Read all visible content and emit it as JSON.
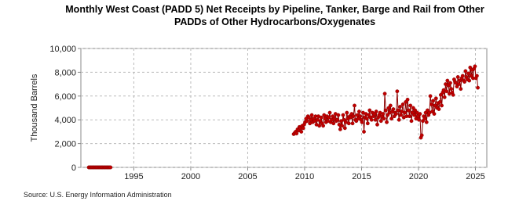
{
  "chart_data": {
    "type": "line",
    "title": [
      "Monthly West Coast (PADD 5) Net Receipts by Pipeline, Tanker, Barge and Rail from Other",
      "PADDs of Other Hydrocarbons/Oxygenates"
    ],
    "y_label": "Thousand Barrels",
    "source": "Source: U.S. Energy Information Administration",
    "xlim": [
      1990.35,
      2026
    ],
    "xticks": [
      1995,
      2000,
      2005,
      2010,
      2015,
      2020,
      2025
    ],
    "ylim": [
      0,
      10000
    ],
    "yticks": [
      0,
      {
        "value": 2000,
        "label": "2,000"
      },
      {
        "value": 4000,
        "label": "4,000"
      },
      {
        "value": 6000,
        "label": "6,000"
      },
      {
        "value": 8000,
        "label": "8,000"
      },
      {
        "value": 10000,
        "label": "10,000"
      }
    ],
    "grid": true,
    "series": [
      {
        "color": "#c00000",
        "x": [
          1991.04,
          1991.13,
          1991.21,
          1991.29,
          1991.38,
          1991.46,
          1991.54,
          1991.63,
          1991.71,
          1991.79,
          1991.88,
          1991.96,
          1992.04,
          1992.13,
          1992.21,
          1992.29,
          1992.38,
          1992.46,
          1992.54,
          1992.63,
          1992.71,
          1992.79,
          1992.88,
          1992.96,
          1993.04,
          2009.04,
          2009.13,
          2009.21,
          2009.29,
          2009.38,
          2009.46,
          2009.54,
          2009.63,
          2009.71,
          2009.79,
          2009.88,
          2009.96,
          2010.04,
          2010.13,
          2010.21,
          2010.29,
          2010.38,
          2010.46,
          2010.54,
          2010.63,
          2010.71,
          2010.79,
          2010.88,
          2010.96,
          2011.04,
          2011.13,
          2011.21,
          2011.29,
          2011.38,
          2011.46,
          2011.54,
          2011.63,
          2011.71,
          2011.79,
          2011.88,
          2011.96,
          2012.04,
          2012.13,
          2012.21,
          2012.29,
          2012.38,
          2012.46,
          2012.54,
          2012.63,
          2012.71,
          2012.79,
          2012.88,
          2012.96,
          2013.04,
          2013.13,
          2013.21,
          2013.29,
          2013.38,
          2013.46,
          2013.54,
          2013.63,
          2013.71,
          2013.79,
          2013.88,
          2013.96,
          2014.04,
          2014.13,
          2014.21,
          2014.29,
          2014.38,
          2014.46,
          2014.54,
          2014.63,
          2014.71,
          2014.79,
          2014.88,
          2014.96,
          2015.04,
          2015.13,
          2015.21,
          2015.29,
          2015.38,
          2015.46,
          2015.54,
          2015.63,
          2015.71,
          2015.79,
          2015.88,
          2015.96,
          2016.04,
          2016.13,
          2016.21,
          2016.29,
          2016.38,
          2016.46,
          2016.54,
          2016.63,
          2016.71,
          2016.79,
          2016.88,
          2016.96,
          2017.04,
          2017.13,
          2017.21,
          2017.29,
          2017.38,
          2017.46,
          2017.54,
          2017.63,
          2017.71,
          2017.79,
          2017.88,
          2017.96,
          2018.04,
          2018.13,
          2018.21,
          2018.29,
          2018.38,
          2018.46,
          2018.54,
          2018.63,
          2018.71,
          2018.79,
          2018.88,
          2018.96,
          2019.04,
          2019.13,
          2019.21,
          2019.29,
          2019.38,
          2019.46,
          2019.54,
          2019.63,
          2019.71,
          2019.79,
          2019.88,
          2019.96,
          2020.04,
          2020.13,
          2020.21,
          2020.29,
          2020.38,
          2020.46,
          2020.54,
          2020.63,
          2020.71,
          2020.79,
          2020.88,
          2020.96,
          2021.04,
          2021.13,
          2021.21,
          2021.29,
          2021.38,
          2021.46,
          2021.54,
          2021.63,
          2021.71,
          2021.79,
          2021.88,
          2021.96,
          2022.04,
          2022.13,
          2022.21,
          2022.29,
          2022.38,
          2022.46,
          2022.54,
          2022.63,
          2022.71,
          2022.79,
          2022.88,
          2022.96,
          2023.04,
          2023.13,
          2023.21,
          2023.29,
          2023.38,
          2023.46,
          2023.54,
          2023.63,
          2023.71,
          2023.79,
          2023.88,
          2023.96,
          2024.04,
          2024.13,
          2024.21,
          2024.29,
          2024.38,
          2024.46,
          2024.54,
          2024.63,
          2024.71,
          2024.79,
          2024.88,
          2024.96,
          2025.04,
          2025.13,
          2025.21
        ],
        "values": [
          0,
          0,
          0,
          0,
          0,
          0,
          0,
          0,
          0,
          0,
          0,
          0,
          0,
          0,
          0,
          0,
          0,
          0,
          0,
          0,
          0,
          0,
          0,
          0,
          null,
          2800,
          2900,
          3000,
          2850,
          3200,
          3100,
          3400,
          3300,
          3000,
          3500,
          3300,
          3600,
          3800,
          4100,
          3900,
          4300,
          4200,
          3700,
          4000,
          4400,
          3800,
          4100,
          3900,
          4300,
          3600,
          4000,
          4300,
          3500,
          3900,
          4200,
          3700,
          3500,
          4400,
          4100,
          3800,
          4300,
          3900,
          4200,
          4600,
          3800,
          4000,
          4300,
          3700,
          4100,
          4500,
          3900,
          4000,
          4400,
          3600,
          3200,
          3900,
          3500,
          4400,
          4000,
          3300,
          3800,
          4600,
          4100,
          3700,
          4300,
          4200,
          4500,
          3700,
          4300,
          5200,
          4000,
          3900,
          4400,
          4100,
          4700,
          4300,
          4000,
          3800,
          4600,
          3000,
          4200,
          4500,
          4100,
          3700,
          4400,
          4800,
          4200,
          4000,
          4600,
          4300,
          4500,
          4000,
          4700,
          3600,
          4200,
          4400,
          4600,
          3900,
          4300,
          4500,
          4100,
          6200,
          4800,
          3800,
          4400,
          5000,
          4600,
          5200,
          4100,
          4700,
          4900,
          4300,
          4600,
          4500,
          6400,
          4800,
          4000,
          5100,
          4400,
          4700,
          5300,
          4200,
          4600,
          5500,
          4300,
          5700,
          4800,
          4300,
          5200,
          3900,
          4600,
          5000,
          4400,
          4800,
          4100,
          4600,
          4300,
          4000,
          4500,
          2500,
          2700,
          3900,
          4300,
          4100,
          4600,
          3800,
          4800,
          4400,
          4600,
          6000,
          5300,
          4700,
          5600,
          4500,
          5200,
          5800,
          5000,
          5400,
          4900,
          5500,
          6100,
          5200,
          6300,
          6500,
          5900,
          7000,
          6400,
          7300,
          6900,
          6200,
          7100,
          6600,
          6300,
          6100,
          7400,
          7200,
          7100,
          6800,
          7600,
          7000,
          7300,
          6600,
          7500,
          7700,
          7300,
          7200,
          8100,
          7600,
          7400,
          7900,
          7300,
          8400,
          7700,
          8200,
          7500,
          8300,
          8500,
          7500,
          7700,
          6700
        ]
      }
    ]
  }
}
